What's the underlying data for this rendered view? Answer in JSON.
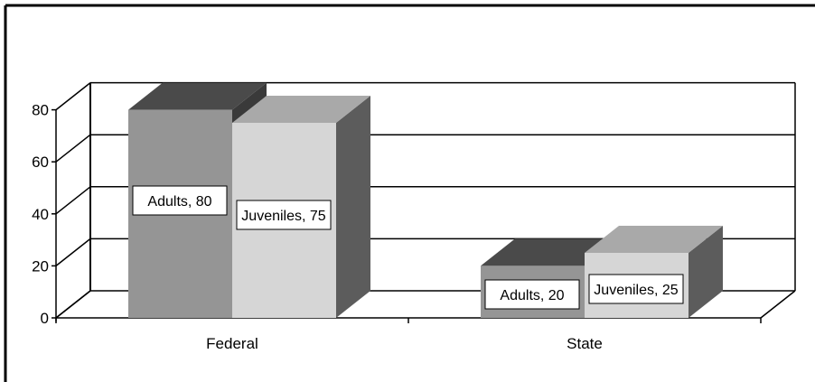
{
  "chart_data": {
    "type": "bar",
    "style": "3d-clustered",
    "categories": [
      "Federal",
      "State"
    ],
    "series": [
      {
        "name": "Adults",
        "values": [
          80,
          20
        ]
      },
      {
        "name": "Juveniles",
        "values": [
          75,
          25
        ]
      }
    ],
    "data_labels": [
      [
        "Adults, 80",
        "Juveniles, 75"
      ],
      [
        "Adults, 20",
        "Juveniles, 25"
      ]
    ],
    "y_ticks": [
      "0",
      "20",
      "40",
      "60",
      "80"
    ],
    "ylim": [
      0,
      80
    ],
    "grid": true,
    "legend": "none",
    "colors": {
      "adults_front": "#959595",
      "adults_top": "#4a4a4a",
      "adults_side": "#3a3a3a",
      "juveniles_front": "#d6d6d6",
      "juveniles_top": "#a9a9a9",
      "juveniles_side": "#5c5c5c",
      "axis": "#000000",
      "background": "#ffffff"
    }
  }
}
